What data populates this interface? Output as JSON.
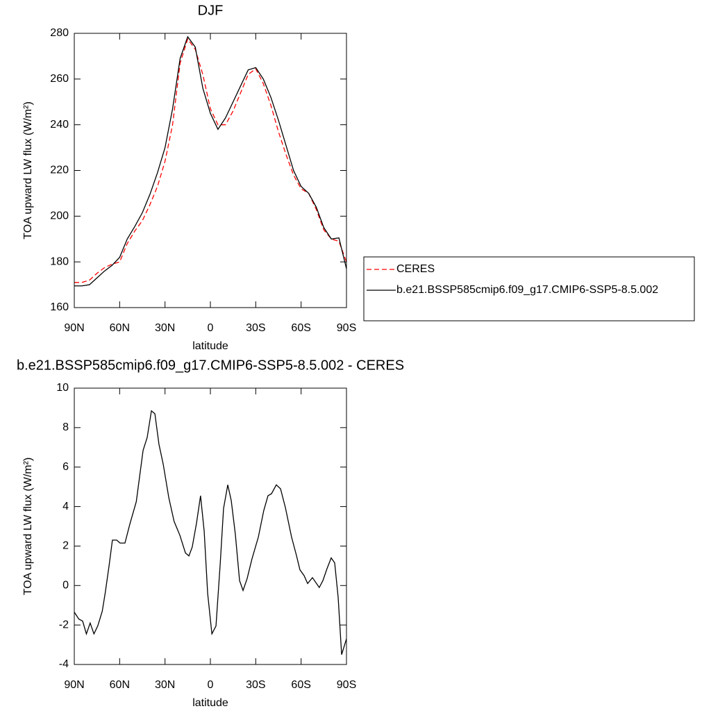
{
  "chart_data": [
    {
      "type": "line",
      "title": "DJF",
      "x_label": "latitude",
      "y_label": "TOA upward LW flux (W/m²)",
      "x": [
        90,
        85,
        80,
        75,
        70,
        65,
        60,
        55,
        50,
        45,
        40,
        35,
        30,
        25,
        20,
        15,
        10,
        5,
        0,
        -5,
        -10,
        -15,
        -20,
        -25,
        -30,
        -35,
        -40,
        -45,
        -50,
        -55,
        -60,
        -65,
        -70,
        -75,
        -80,
        -85,
        -90
      ],
      "series": [
        {
          "name": "CERES",
          "color": "#ff0000",
          "style": "dashed",
          "values": [
            171,
            171,
            172,
            175,
            177.5,
            179,
            180,
            188,
            193.5,
            198,
            205,
            213,
            224,
            240,
            267,
            277.5,
            273,
            262,
            247,
            240,
            240,
            246,
            254,
            262,
            264.5,
            258,
            248.5,
            237,
            227,
            218,
            212,
            210,
            203,
            194,
            190,
            189,
            180
          ]
        },
        {
          "name": "b.e21.BSSP585cmip6.f09_g17.CMIP6-SSP5-8.5.002",
          "color": "#000000",
          "style": "solid",
          "values": [
            169.5,
            169.5,
            170,
            173,
            176,
            178.5,
            182,
            190,
            195.5,
            201.5,
            209.5,
            219,
            230,
            247,
            269,
            278.5,
            274,
            256,
            245,
            238,
            243,
            250,
            257,
            264,
            265,
            260,
            252,
            242,
            231,
            220,
            213,
            210,
            204,
            195,
            190,
            190.5,
            177
          ]
        }
      ],
      "xlim": [
        90,
        -90
      ],
      "xticks": [
        {
          "value": 90,
          "label": "90N"
        },
        {
          "value": 60,
          "label": "60N"
        },
        {
          "value": 30,
          "label": "30N"
        },
        0,
        {
          "value": -30,
          "label": "30S"
        },
        {
          "value": -60,
          "label": "60S"
        },
        {
          "value": -90,
          "label": "90S"
        }
      ],
      "ylim": [
        160,
        280
      ],
      "yticks": [
        160,
        180,
        200,
        220,
        240,
        260,
        280
      ],
      "legend": "right"
    },
    {
      "type": "line",
      "title": "b.e21.BSSP585cmip6.f09_g17.CMIP6-SSP5-8.5.002 - CERES",
      "x_label": "latitude",
      "y_label": "TOA upward LW flux (W/m²)",
      "x": [
        90,
        87,
        84.5,
        82,
        79.5,
        77,
        74.5,
        71.5,
        69.5,
        67,
        64.8,
        62,
        59.7,
        56.5,
        53.3,
        49,
        44.5,
        41.8,
        39,
        36.7,
        34,
        31.2,
        27.5,
        24,
        20.2,
        16.5,
        14.2,
        12,
        9.2,
        6.5,
        4.1,
        1.8,
        -1,
        -3.7,
        -6.5,
        -8.7,
        -11.5,
        -13.8,
        -16.5,
        -19.3,
        -21.6,
        -24.3,
        -27.5,
        -31.7,
        -35.3,
        -38.1,
        -40.4,
        -43.6,
        -46.4,
        -49.6,
        -53.7,
        -57,
        -59.2,
        -62,
        -64.3,
        -67.5,
        -72,
        -74.4,
        -77.1,
        -79.9,
        -82.2,
        -84.5,
        -86.8,
        -90
      ],
      "series": [
        {
          "color": "#000000",
          "style": "solid",
          "values": [
            -1.35,
            -1.7,
            -1.8,
            -2.45,
            -1.9,
            -2.45,
            -2.05,
            -1.3,
            -0.35,
            1,
            2.3,
            2.3,
            2.15,
            2.15,
            3.1,
            4.25,
            6.85,
            7.5,
            8.85,
            8.7,
            7.15,
            6.15,
            4.45,
            3.25,
            2.55,
            1.65,
            1.5,
            1.95,
            3.15,
            4.55,
            2.75,
            -0.4,
            -2.45,
            -2.05,
            1.1,
            3.9,
            5.1,
            4.3,
            2.6,
            0.25,
            -0.25,
            0.35,
            1.35,
            2.45,
            3.8,
            4.55,
            4.65,
            5.1,
            4.9,
            3.95,
            2.45,
            1.5,
            0.8,
            0.5,
            0.1,
            0.4,
            -0.1,
            0.25,
            0.85,
            1.4,
            1.15,
            -0.6,
            -3.5,
            -2.7
          ]
        }
      ],
      "xlim": [
        90,
        -90
      ],
      "xticks": [
        {
          "value": 90,
          "label": "90N"
        },
        {
          "value": 60,
          "label": "60N"
        },
        {
          "value": 30,
          "label": "30N"
        },
        0,
        {
          "value": -30,
          "label": "30S"
        },
        {
          "value": -60,
          "label": "60S"
        },
        {
          "value": -90,
          "label": "90S"
        }
      ],
      "ylim": [
        -4,
        10
      ],
      "yticks": [
        -4,
        -2,
        0,
        2,
        4,
        6,
        8,
        10
      ]
    }
  ]
}
